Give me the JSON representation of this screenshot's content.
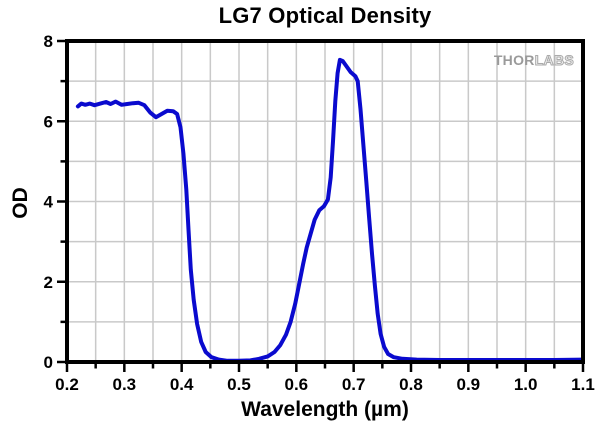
{
  "chart_data": {
    "type": "line",
    "title": "LG7 Optical Density",
    "xlabel": "Wavelength (µm)",
    "ylabel": "OD",
    "xlim": [
      0.2,
      1.1
    ],
    "ylim": [
      0,
      8
    ],
    "x_major_ticks": [
      0.2,
      0.3,
      0.4,
      0.5,
      0.6,
      0.7,
      0.8,
      0.9,
      1.0,
      1.1
    ],
    "x_tick_labels": [
      "0.2",
      "0.3",
      "0.4",
      "0.5",
      "0.6",
      "0.7",
      "0.8",
      "0.9",
      "1.0",
      "1.1"
    ],
    "x_minor_step": 0.05,
    "y_major_ticks": [
      0,
      2,
      4,
      6,
      8
    ],
    "y_tick_labels": [
      "0",
      "2",
      "4",
      "6",
      "8"
    ],
    "y_minor_step": 1,
    "grid": {
      "x_step": 0.05,
      "y_step": 1,
      "color": "#c9c9c9",
      "on": true
    },
    "frame_color": "#000000",
    "legend": "none",
    "series": [
      {
        "name": "OD",
        "color": "#0a0ace",
        "points": [
          [
            0.219,
            6.37
          ],
          [
            0.225,
            6.44
          ],
          [
            0.232,
            6.41
          ],
          [
            0.24,
            6.44
          ],
          [
            0.248,
            6.4
          ],
          [
            0.258,
            6.44
          ],
          [
            0.268,
            6.48
          ],
          [
            0.276,
            6.43
          ],
          [
            0.285,
            6.49
          ],
          [
            0.295,
            6.41
          ],
          [
            0.305,
            6.43
          ],
          [
            0.315,
            6.45
          ],
          [
            0.325,
            6.46
          ],
          [
            0.335,
            6.4
          ],
          [
            0.345,
            6.22
          ],
          [
            0.355,
            6.1
          ],
          [
            0.365,
            6.18
          ],
          [
            0.375,
            6.26
          ],
          [
            0.385,
            6.25
          ],
          [
            0.392,
            6.18
          ],
          [
            0.398,
            5.85
          ],
          [
            0.403,
            5.2
          ],
          [
            0.408,
            4.3
          ],
          [
            0.412,
            3.3
          ],
          [
            0.416,
            2.3
          ],
          [
            0.421,
            1.55
          ],
          [
            0.427,
            0.95
          ],
          [
            0.434,
            0.5
          ],
          [
            0.442,
            0.25
          ],
          [
            0.452,
            0.12
          ],
          [
            0.465,
            0.06
          ],
          [
            0.48,
            0.03
          ],
          [
            0.5,
            0.03
          ],
          [
            0.52,
            0.04
          ],
          [
            0.535,
            0.08
          ],
          [
            0.55,
            0.14
          ],
          [
            0.562,
            0.25
          ],
          [
            0.572,
            0.42
          ],
          [
            0.582,
            0.68
          ],
          [
            0.59,
            1.0
          ],
          [
            0.598,
            1.45
          ],
          [
            0.605,
            1.95
          ],
          [
            0.612,
            2.45
          ],
          [
            0.618,
            2.85
          ],
          [
            0.625,
            3.2
          ],
          [
            0.632,
            3.55
          ],
          [
            0.64,
            3.78
          ],
          [
            0.648,
            3.88
          ],
          [
            0.655,
            4.05
          ],
          [
            0.66,
            4.6
          ],
          [
            0.664,
            5.5
          ],
          [
            0.668,
            6.5
          ],
          [
            0.672,
            7.2
          ],
          [
            0.676,
            7.53
          ],
          [
            0.681,
            7.5
          ],
          [
            0.687,
            7.38
          ],
          [
            0.695,
            7.22
          ],
          [
            0.703,
            7.12
          ],
          [
            0.707,
            7.0
          ],
          [
            0.712,
            6.3
          ],
          [
            0.717,
            5.4
          ],
          [
            0.722,
            4.5
          ],
          [
            0.727,
            3.6
          ],
          [
            0.732,
            2.7
          ],
          [
            0.737,
            1.9
          ],
          [
            0.742,
            1.2
          ],
          [
            0.747,
            0.7
          ],
          [
            0.753,
            0.38
          ],
          [
            0.76,
            0.2
          ],
          [
            0.77,
            0.12
          ],
          [
            0.785,
            0.08
          ],
          [
            0.81,
            0.06
          ],
          [
            0.85,
            0.05
          ],
          [
            0.9,
            0.05
          ],
          [
            0.95,
            0.05
          ],
          [
            1.0,
            0.05
          ],
          [
            1.05,
            0.05
          ],
          [
            1.1,
            0.06
          ]
        ]
      }
    ],
    "watermark": {
      "part1": "THOR",
      "part2": "LABS"
    }
  }
}
